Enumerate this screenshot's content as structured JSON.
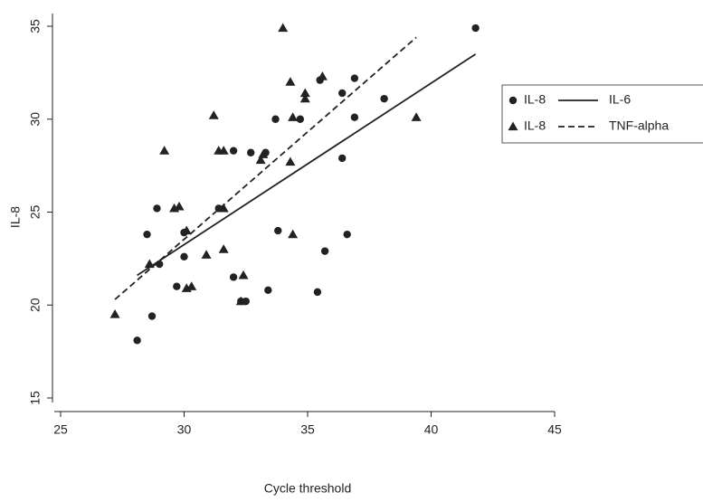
{
  "chart_data": {
    "type": "scatter",
    "xlabel": "Cycle threshold",
    "ylabel": "IL-8",
    "xlim": [
      25,
      45
    ],
    "xticks": [
      25,
      30,
      35,
      40,
      45
    ],
    "ylim": [
      15,
      35
    ],
    "yticks": [
      15,
      20,
      25,
      30,
      35
    ],
    "grid": false,
    "legend": "right",
    "series": [
      {
        "name": "IL-8",
        "kind": "scatter",
        "marker": "circle",
        "color": "#222222",
        "x": [
          28.1,
          28.7,
          28.5,
          28.9,
          29.0,
          29.7,
          30.0,
          30.0,
          31.4,
          32.0,
          32.0,
          32.3,
          32.5,
          32.7,
          33.3,
          33.4,
          33.7,
          33.8,
          34.7,
          35.4,
          35.5,
          35.7,
          36.4,
          36.4,
          36.6,
          36.9,
          36.9,
          38.1,
          41.8
        ],
        "values": [
          18.1,
          19.4,
          23.8,
          25.2,
          22.2,
          21.0,
          22.6,
          23.9,
          25.2,
          28.3,
          21.5,
          20.2,
          20.2,
          28.2,
          28.2,
          20.8,
          30.0,
          24.0,
          30.0,
          20.7,
          32.1,
          22.9,
          31.4,
          27.9,
          23.8,
          32.2,
          30.1,
          31.1,
          34.9
        ]
      },
      {
        "name": "IL-6",
        "kind": "line",
        "dash": false,
        "color": "#222222",
        "x": [
          28.1,
          41.8
        ],
        "values": [
          21.6,
          33.5
        ]
      },
      {
        "name": "IL-8",
        "kind": "scatter",
        "marker": "triangle",
        "color": "#222222",
        "x": [
          27.2,
          28.6,
          29.2,
          29.6,
          29.8,
          30.1,
          30.1,
          30.3,
          30.9,
          31.2,
          31.4,
          31.6,
          31.6,
          31.6,
          32.3,
          32.4,
          33.1,
          33.2,
          34.0,
          34.3,
          34.3,
          34.4,
          34.4,
          34.9,
          34.9,
          35.6,
          39.4
        ],
        "values": [
          19.5,
          22.2,
          28.3,
          25.2,
          25.3,
          24.0,
          20.9,
          21.0,
          22.7,
          30.2,
          28.3,
          28.3,
          25.2,
          23.0,
          20.2,
          21.6,
          27.8,
          28.1,
          34.9,
          32.0,
          27.7,
          30.1,
          23.8,
          31.4,
          31.1,
          32.3,
          30.1
        ]
      },
      {
        "name": "TNF-alpha",
        "kind": "line",
        "dash": true,
        "color": "#222222",
        "x": [
          27.2,
          39.4
        ],
        "values": [
          20.3,
          34.4
        ]
      }
    ]
  }
}
